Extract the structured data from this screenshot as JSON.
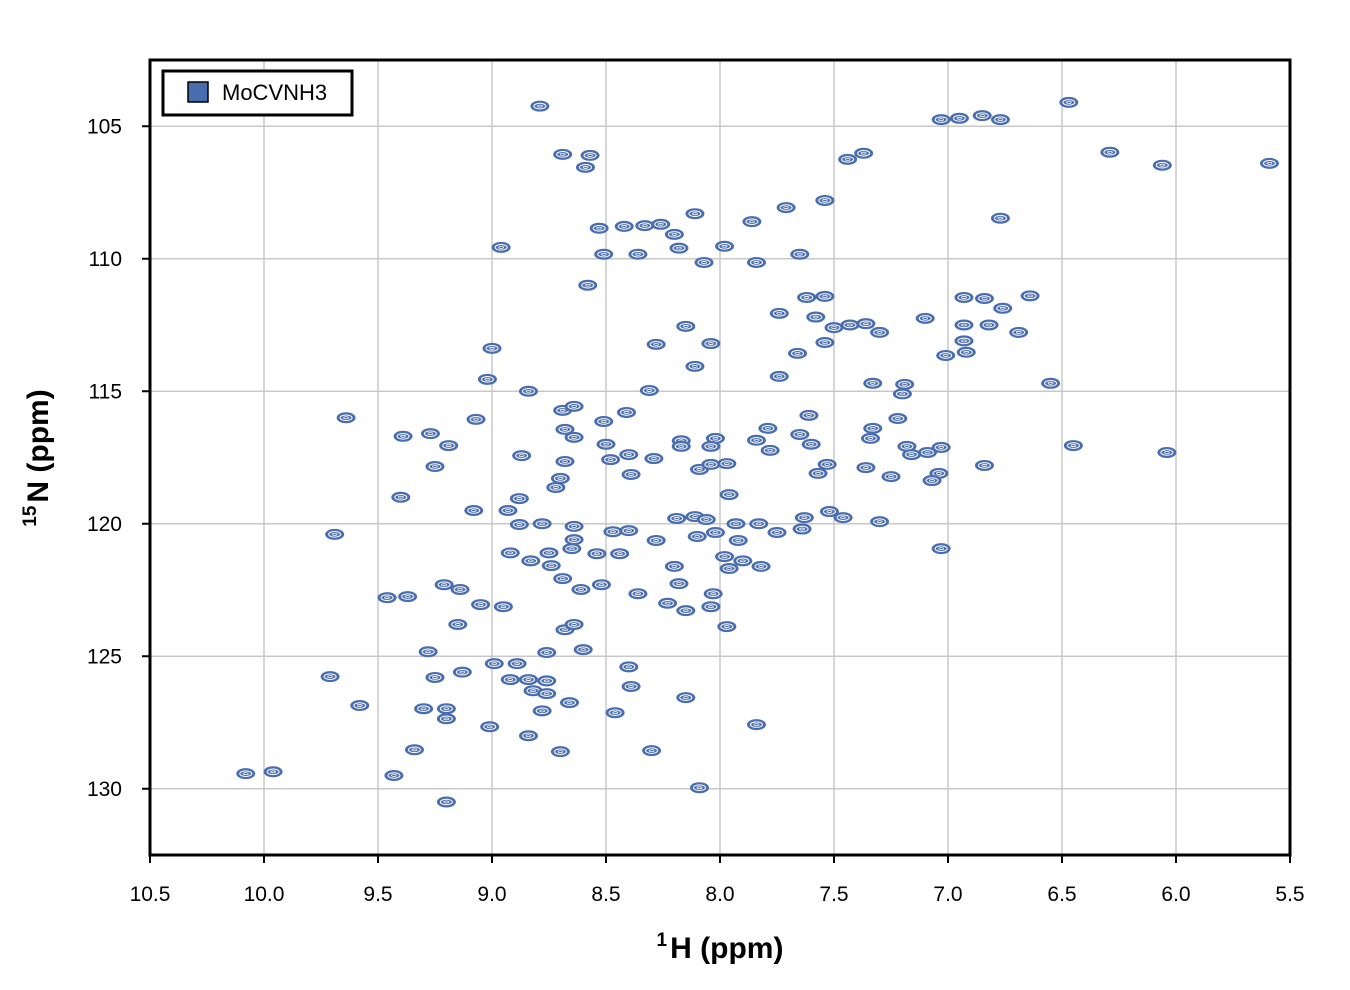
{
  "chart_data": {
    "type": "scatter",
    "subtype": "2D NMR HSQC contour spectrum",
    "xlabel_sup": "1",
    "xlabel": "H (ppm)",
    "ylabel_sup": "15",
    "ylabel": "N (ppm)",
    "xlim": [
      10.5,
      5.5
    ],
    "ylim": [
      102.5,
      132.5
    ],
    "x_reversed": true,
    "y_reversed": true,
    "grid": true,
    "xticks": [
      "10.5",
      "10.0",
      "9.5",
      "9.0",
      "8.5",
      "8.0",
      "7.5",
      "7.0",
      "6.5",
      "6.0",
      "5.5"
    ],
    "xtick_values": [
      10.5,
      10.0,
      9.5,
      9.0,
      8.5,
      8.0,
      7.5,
      7.0,
      6.5,
      6.0,
      5.5
    ],
    "yticks": [
      "105",
      "110",
      "115",
      "120",
      "125",
      "130"
    ],
    "ytick_values": [
      105,
      110,
      115,
      120,
      125,
      130
    ],
    "legend": {
      "position": "top-left",
      "entries": [
        {
          "name": "MoCVNH3",
          "color": "#4a6db0"
        }
      ]
    },
    "series": [
      {
        "name": "MoCVNH3",
        "color": "#4a6db0",
        "peaks": [
          [
            8.79,
            104.24
          ],
          [
            8.69,
            106.06
          ],
          [
            8.57,
            106.1
          ],
          [
            8.59,
            106.55
          ],
          [
            7.44,
            106.25
          ],
          [
            7.37,
            106.02
          ],
          [
            6.29,
            105.98
          ],
          [
            6.06,
            106.47
          ],
          [
            5.59,
            106.4
          ],
          [
            6.47,
            104.1
          ],
          [
            7.03,
            104.75
          ],
          [
            6.95,
            104.7
          ],
          [
            6.85,
            104.6
          ],
          [
            6.77,
            104.75
          ],
          [
            7.54,
            107.8
          ],
          [
            7.71,
            108.07
          ],
          [
            7.86,
            108.6
          ],
          [
            8.11,
            108.3
          ],
          [
            6.77,
            108.47
          ],
          [
            8.53,
            108.85
          ],
          [
            8.42,
            108.78
          ],
          [
            8.33,
            108.75
          ],
          [
            8.26,
            108.7
          ],
          [
            8.2,
            109.08
          ],
          [
            8.96,
            109.57
          ],
          [
            7.98,
            109.53
          ],
          [
            8.18,
            109.6
          ],
          [
            8.51,
            109.83
          ],
          [
            8.36,
            109.83
          ],
          [
            7.65,
            109.83
          ],
          [
            8.07,
            110.14
          ],
          [
            7.84,
            110.14
          ],
          [
            8.58,
            111.0
          ],
          [
            7.62,
            111.46
          ],
          [
            7.54,
            111.42
          ],
          [
            7.74,
            112.06
          ],
          [
            7.58,
            112.2
          ],
          [
            7.43,
            112.5
          ],
          [
            7.3,
            112.78
          ],
          [
            7.5,
            112.6
          ],
          [
            7.36,
            112.45
          ],
          [
            8.15,
            112.55
          ],
          [
            8.04,
            113.2
          ],
          [
            8.28,
            113.23
          ],
          [
            7.66,
            113.57
          ],
          [
            7.54,
            113.16
          ],
          [
            9.0,
            113.38
          ],
          [
            9.02,
            114.55
          ],
          [
            8.11,
            114.06
          ],
          [
            7.74,
            114.44
          ],
          [
            8.84,
            115.0
          ],
          [
            8.31,
            114.97
          ],
          [
            7.33,
            114.7
          ],
          [
            7.19,
            114.74
          ],
          [
            7.2,
            115.1
          ],
          [
            6.93,
            111.46
          ],
          [
            6.84,
            111.5
          ],
          [
            6.76,
            111.87
          ],
          [
            6.64,
            111.4
          ],
          [
            7.1,
            112.25
          ],
          [
            6.93,
            112.5
          ],
          [
            6.82,
            112.5
          ],
          [
            6.69,
            112.78
          ],
          [
            6.93,
            113.1
          ],
          [
            7.01,
            113.65
          ],
          [
            6.92,
            113.53
          ],
          [
            6.55,
            114.7
          ],
          [
            9.64,
            116.0
          ],
          [
            9.07,
            116.06
          ],
          [
            8.69,
            115.72
          ],
          [
            8.64,
            115.57
          ],
          [
            8.51,
            116.14
          ],
          [
            8.41,
            115.8
          ],
          [
            7.61,
            115.91
          ],
          [
            7.22,
            116.03
          ],
          [
            7.33,
            116.4
          ],
          [
            7.79,
            116.4
          ],
          [
            9.27,
            116.6
          ],
          [
            9.39,
            116.7
          ],
          [
            9.19,
            117.05
          ],
          [
            8.68,
            116.44
          ],
          [
            8.64,
            116.74
          ],
          [
            8.5,
            117.0
          ],
          [
            8.4,
            117.39
          ],
          [
            8.29,
            117.54
          ],
          [
            8.48,
            117.58
          ],
          [
            8.17,
            116.87
          ],
          [
            8.17,
            117.08
          ],
          [
            8.02,
            116.78
          ],
          [
            8.04,
            117.08
          ],
          [
            7.84,
            116.85
          ],
          [
            7.78,
            117.23
          ],
          [
            7.65,
            116.63
          ],
          [
            7.6,
            117.0
          ],
          [
            7.34,
            116.78
          ],
          [
            7.18,
            117.08
          ],
          [
            7.16,
            117.39
          ],
          [
            7.09,
            117.31
          ],
          [
            7.03,
            117.12
          ],
          [
            6.45,
            117.05
          ],
          [
            6.04,
            117.31
          ],
          [
            8.87,
            117.43
          ],
          [
            9.25,
            117.84
          ],
          [
            8.68,
            117.65
          ],
          [
            8.09,
            117.95
          ],
          [
            7.97,
            117.73
          ],
          [
            8.04,
            117.76
          ],
          [
            8.39,
            118.14
          ],
          [
            7.57,
            118.1
          ],
          [
            7.53,
            117.76
          ],
          [
            7.36,
            117.88
          ],
          [
            7.25,
            118.22
          ],
          [
            7.04,
            118.1
          ],
          [
            7.07,
            118.37
          ],
          [
            6.84,
            117.8
          ],
          [
            8.7,
            118.29
          ],
          [
            8.72,
            118.63
          ],
          [
            9.4,
            119.0
          ],
          [
            7.96,
            118.9
          ],
          [
            8.88,
            119.05
          ],
          [
            9.08,
            119.5
          ],
          [
            8.93,
            119.5
          ],
          [
            8.88,
            120.03
          ],
          [
            8.78,
            120.0
          ],
          [
            8.64,
            120.1
          ],
          [
            8.64,
            120.6
          ],
          [
            8.47,
            120.3
          ],
          [
            8.4,
            120.26
          ],
          [
            8.19,
            119.8
          ],
          [
            8.11,
            119.73
          ],
          [
            8.06,
            119.84
          ],
          [
            7.93,
            120.0
          ],
          [
            7.83,
            120.0
          ],
          [
            8.1,
            120.48
          ],
          [
            8.02,
            120.33
          ],
          [
            7.92,
            120.63
          ],
          [
            7.75,
            120.33
          ],
          [
            7.64,
            120.2
          ],
          [
            7.63,
            119.77
          ],
          [
            7.52,
            119.54
          ],
          [
            7.46,
            119.77
          ],
          [
            7.3,
            119.92
          ],
          [
            7.03,
            120.94
          ],
          [
            9.69,
            120.4
          ],
          [
            8.92,
            121.1
          ],
          [
            8.83,
            121.4
          ],
          [
            8.75,
            121.1
          ],
          [
            8.65,
            120.94
          ],
          [
            8.54,
            121.13
          ],
          [
            8.44,
            121.13
          ],
          [
            8.74,
            121.58
          ],
          [
            8.28,
            120.63
          ],
          [
            7.98,
            121.24
          ],
          [
            7.9,
            121.4
          ],
          [
            7.96,
            121.69
          ],
          [
            7.82,
            121.61
          ],
          [
            8.2,
            121.61
          ],
          [
            8.69,
            122.07
          ],
          [
            8.61,
            122.48
          ],
          [
            8.52,
            122.3
          ],
          [
            9.21,
            122.3
          ],
          [
            9.14,
            122.48
          ],
          [
            9.46,
            122.79
          ],
          [
            9.37,
            122.75
          ],
          [
            8.36,
            122.64
          ],
          [
            8.18,
            122.26
          ],
          [
            8.03,
            122.64
          ],
          [
            8.04,
            123.13
          ],
          [
            9.05,
            123.05
          ],
          [
            8.95,
            123.13
          ],
          [
            8.23,
            123.0
          ],
          [
            8.15,
            123.28
          ],
          [
            9.15,
            123.8
          ],
          [
            8.68,
            124.0
          ],
          [
            8.64,
            123.8
          ],
          [
            7.97,
            123.88
          ],
          [
            9.28,
            124.83
          ],
          [
            8.76,
            124.86
          ],
          [
            8.6,
            124.75
          ],
          [
            8.99,
            125.28
          ],
          [
            8.89,
            125.28
          ],
          [
            8.4,
            125.4
          ],
          [
            9.71,
            125.77
          ],
          [
            9.25,
            125.8
          ],
          [
            9.13,
            125.6
          ],
          [
            8.92,
            125.88
          ],
          [
            8.84,
            125.88
          ],
          [
            8.76,
            125.93
          ],
          [
            8.82,
            126.3
          ],
          [
            8.76,
            126.41
          ],
          [
            8.39,
            126.14
          ],
          [
            8.15,
            126.56
          ],
          [
            8.66,
            126.75
          ],
          [
            9.58,
            126.86
          ],
          [
            9.3,
            126.98
          ],
          [
            9.2,
            126.98
          ],
          [
            9.2,
            127.36
          ],
          [
            8.78,
            127.06
          ],
          [
            8.46,
            127.13
          ],
          [
            9.01,
            127.66
          ],
          [
            7.84,
            127.58
          ],
          [
            8.84,
            128.0
          ],
          [
            9.34,
            128.53
          ],
          [
            8.7,
            128.6
          ],
          [
            8.3,
            128.56
          ],
          [
            10.08,
            129.43
          ],
          [
            9.96,
            129.36
          ],
          [
            9.43,
            129.5
          ],
          [
            8.09,
            129.96
          ],
          [
            9.2,
            130.5
          ]
        ]
      }
    ]
  }
}
